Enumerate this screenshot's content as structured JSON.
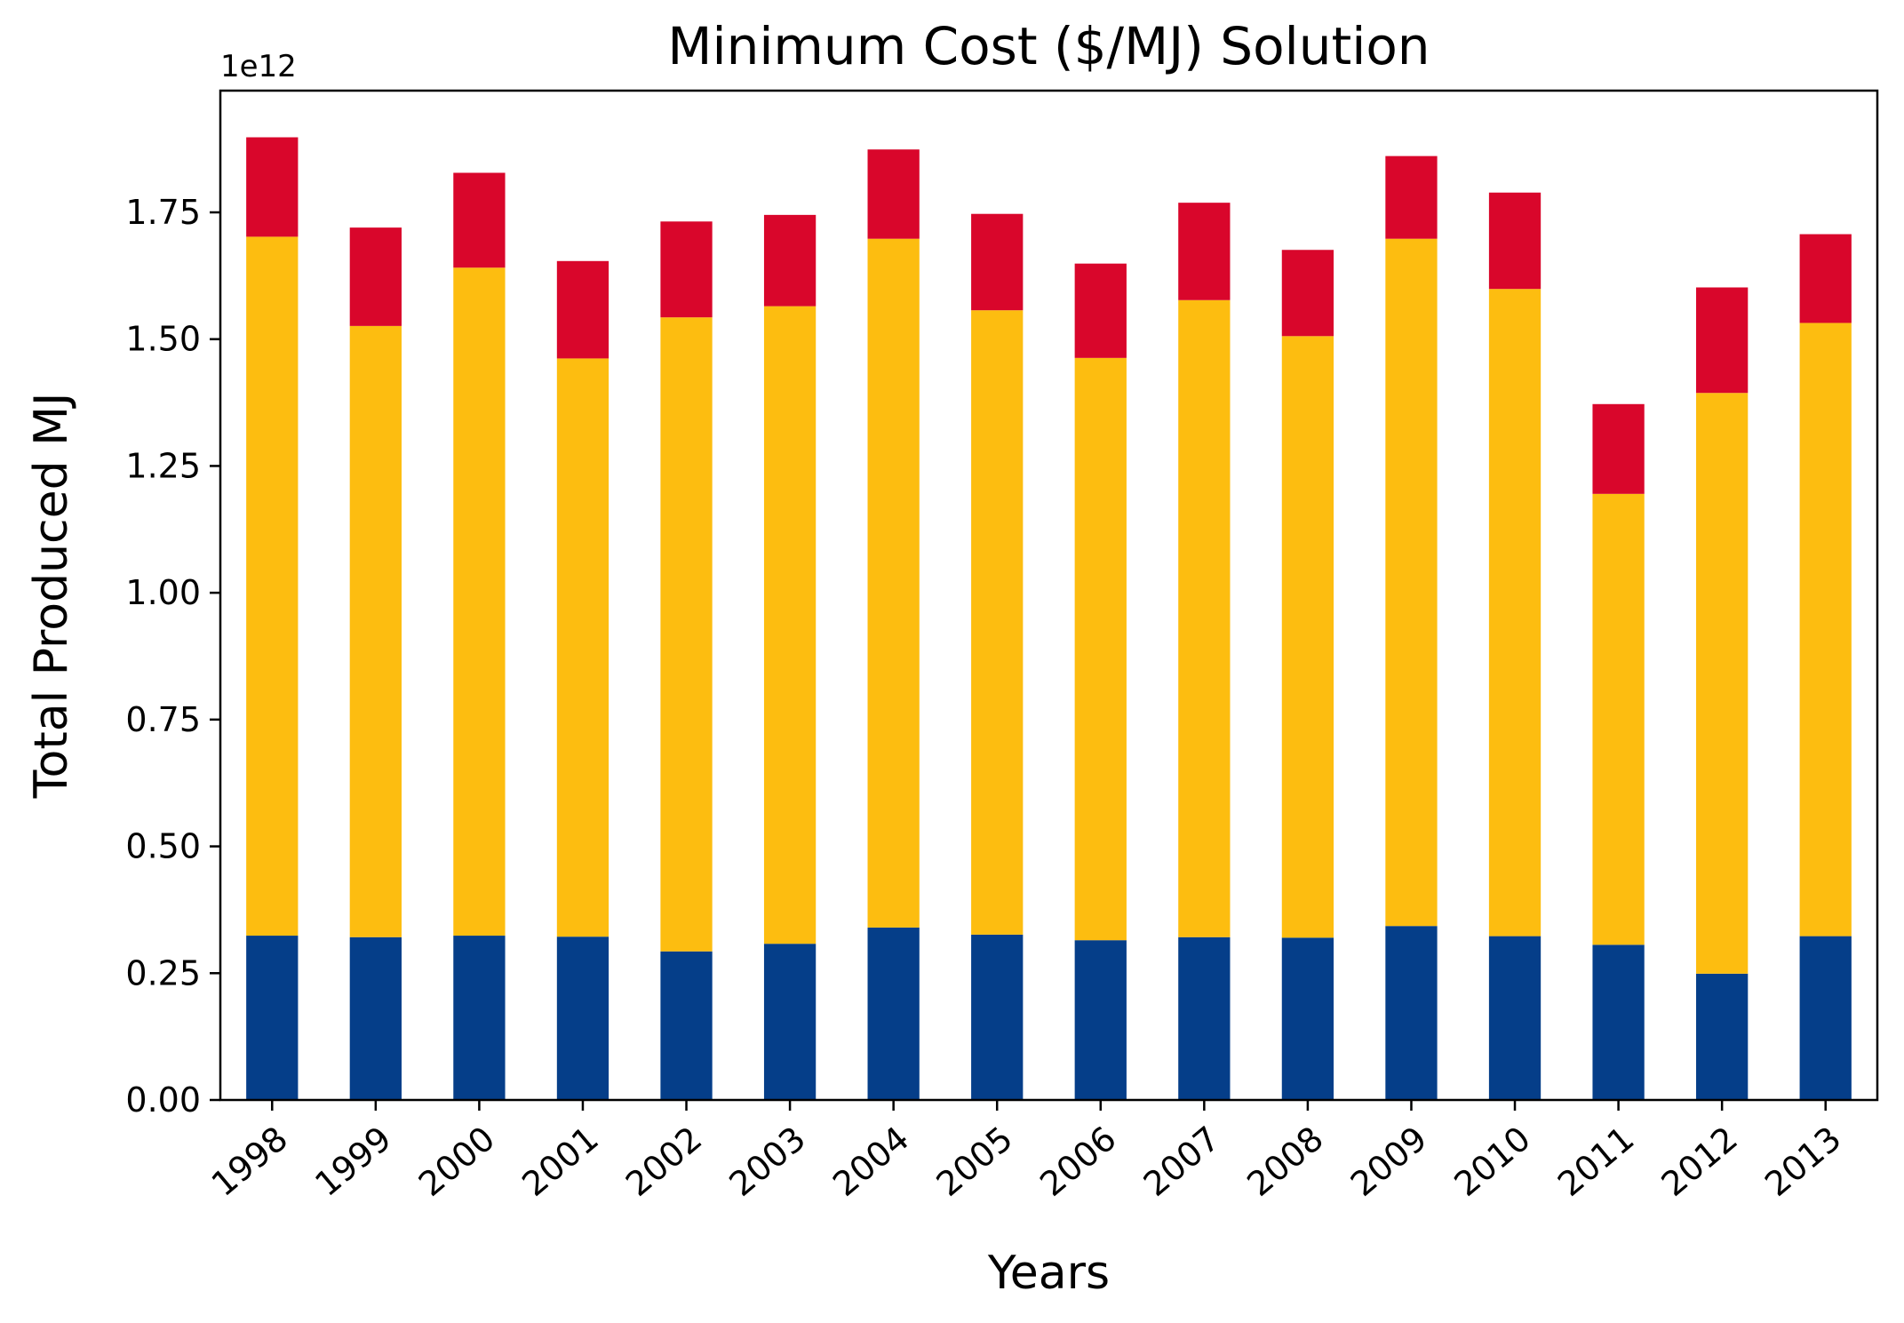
{
  "chart_data": {
    "type": "bar",
    "stacked": true,
    "title": "Minimum Cost ($/MJ) Solution",
    "xlabel": "Years",
    "ylabel": "Total Produced MJ",
    "y_offset_label": "1e12",
    "categories": [
      "1998",
      "1999",
      "2000",
      "2001",
      "2002",
      "2003",
      "2004",
      "2005",
      "2006",
      "2007",
      "2008",
      "2009",
      "2010",
      "2011",
      "2012",
      "2013"
    ],
    "y_ticks": [
      0.0,
      0.25,
      0.5,
      0.75,
      1.0,
      1.25,
      1.5,
      1.75
    ],
    "y_tick_labels": [
      "0.00",
      "0.25",
      "0.50",
      "0.75",
      "1.00",
      "1.25",
      "1.50",
      "1.75"
    ],
    "ylim": [
      0,
      1.99
    ],
    "y_scale": 1000000000000.0,
    "grid": false,
    "legend": "none",
    "series": [
      {
        "color": "#053e89",
        "values": [
          0.324,
          0.321,
          0.324,
          0.322,
          0.293,
          0.308,
          0.34,
          0.326,
          0.315,
          0.321,
          0.32,
          0.343,
          0.323,
          0.306,
          0.249,
          0.323
        ]
      },
      {
        "color": "#fdbd10",
        "values": [
          1.378,
          1.205,
          1.317,
          1.14,
          1.25,
          1.257,
          1.358,
          1.231,
          1.148,
          1.256,
          1.186,
          1.355,
          1.276,
          0.889,
          1.145,
          1.209
        ]
      },
      {
        "color": "#d9062b",
        "values": [
          0.196,
          0.194,
          0.187,
          0.192,
          0.189,
          0.18,
          0.176,
          0.19,
          0.186,
          0.192,
          0.17,
          0.163,
          0.19,
          0.177,
          0.208,
          0.175
        ]
      }
    ]
  }
}
